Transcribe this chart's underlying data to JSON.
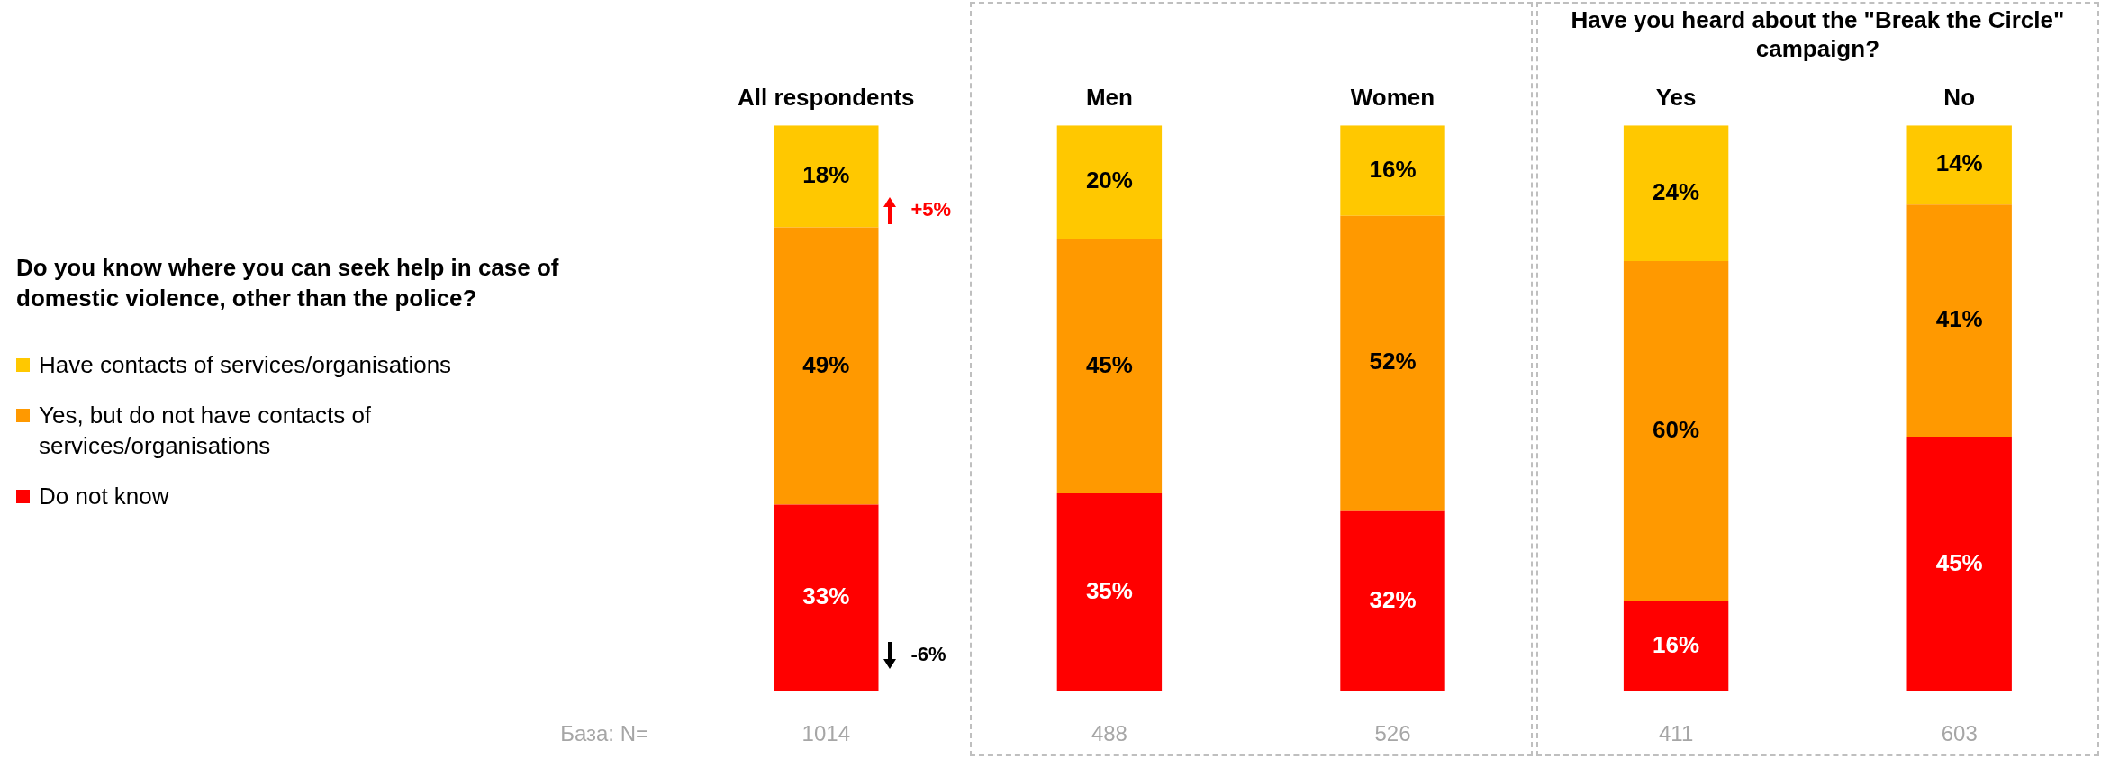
{
  "chart_data": {
    "type": "bar",
    "stacked": true,
    "legend": "left",
    "grid": false,
    "title": "Do you know where you can seek help in case of domestic violence, other than the police?",
    "subtitle": "Have you heard about the \"Break the Circle\" campaign?",
    "categories": [
      "All respondents",
      "Men",
      "Women",
      "Yes",
      "No"
    ],
    "series": [
      {
        "name": "Do not know",
        "color": "#ff0000",
        "values": [
          33,
          35,
          32,
          16,
          45
        ],
        "value_labels": [
          "33%",
          "35%",
          "32%",
          "16%",
          "45%"
        ]
      },
      {
        "name": "Yes, but do not have contacts of services/organisations",
        "color": "#ff9900",
        "values": [
          49,
          45,
          52,
          60,
          41
        ],
        "value_labels": [
          "49%",
          "45%",
          "52%",
          "60%",
          "41%"
        ]
      },
      {
        "name": "Have contacts of services/organisations",
        "color": "#ffc800",
        "values": [
          18,
          20,
          16,
          24,
          14
        ],
        "value_labels": [
          "18%",
          "20%",
          "16%",
          "24%",
          "14%"
        ]
      }
    ],
    "annotations": [
      "База: N=",
      "1014",
      "488",
      "526",
      "411",
      "603",
      "+5%",
      "-6%"
    ]
  }
}
